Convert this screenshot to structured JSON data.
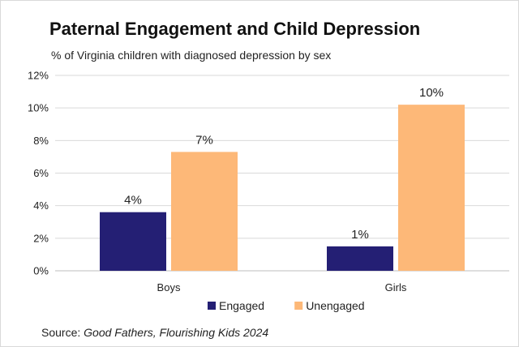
{
  "chart_data": {
    "type": "bar",
    "title": "Paternal Engagement and Child Depression",
    "subtitle": "% of Virginia children with diagnosed depression by sex",
    "categories": [
      "Boys",
      "Girls"
    ],
    "series": [
      {
        "name": "Engaged",
        "color": "#241f74",
        "values": [
          3.6,
          1.5
        ],
        "labels": [
          "4%",
          "1%"
        ]
      },
      {
        "name": "Unengaged",
        "color": "#fdb878",
        "values": [
          7.3,
          10.2
        ],
        "labels": [
          "7%",
          "10%"
        ]
      }
    ],
    "ylim": [
      0,
      12
    ],
    "yticks": [
      "0%",
      "2%",
      "4%",
      "6%",
      "8%",
      "10%",
      "12%"
    ],
    "grid": true,
    "legend_position": "bottom",
    "source_prefix": "Source: ",
    "source_title": "Good Fathers, Flourishing Kids 2024"
  }
}
